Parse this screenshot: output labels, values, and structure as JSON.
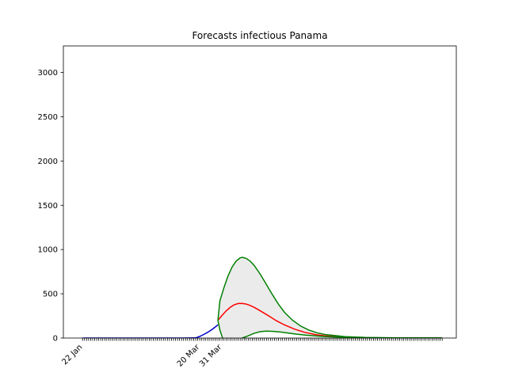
{
  "chart_data": {
    "type": "line",
    "title": "Forecasts infectious Panama",
    "xlabel": "",
    "ylabel": "",
    "x_axis": {
      "type": "date",
      "start": "22 Jan",
      "end": "17 Jul",
      "tick_labels": [
        "22 Jan",
        "20 Mar",
        "31 Mar"
      ],
      "tick_label_days": [
        0,
        58,
        69
      ],
      "minor_tick_step_days": 1
    },
    "ylim": [
      0,
      3300
    ],
    "yticks": [
      0,
      500,
      1000,
      1500,
      2000,
      2500,
      3000
    ],
    "grid": false,
    "band_fill": "#ebebeb",
    "series": [
      {
        "role": "observed",
        "color": "#0000cc",
        "points": [
          [
            0,
            0
          ],
          [
            40,
            0
          ],
          [
            50,
            0
          ],
          [
            56,
            2
          ],
          [
            58,
            18
          ],
          [
            60,
            40
          ],
          [
            62,
            65
          ],
          [
            64,
            95
          ],
          [
            66,
            130
          ],
          [
            67,
            150
          ]
        ]
      },
      {
        "role": "forecast",
        "color": "#ff0000",
        "points": [
          [
            67,
            200
          ],
          [
            69,
            255
          ],
          [
            71,
            305
          ],
          [
            73,
            345
          ],
          [
            75,
            375
          ],
          [
            77,
            390
          ],
          [
            79,
            392
          ],
          [
            81,
            384
          ],
          [
            83,
            368
          ],
          [
            85,
            346
          ],
          [
            87,
            320
          ],
          [
            90,
            280
          ],
          [
            93,
            238
          ],
          [
            96,
            195
          ],
          [
            100,
            148
          ],
          [
            105,
            100
          ],
          [
            110,
            64
          ],
          [
            115,
            40
          ],
          [
            120,
            25
          ],
          [
            130,
            10
          ],
          [
            140,
            4
          ],
          [
            155,
            2
          ],
          [
            178,
            1
          ]
        ]
      },
      {
        "role": "upper",
        "color": "#008000",
        "points": [
          [
            67,
            200
          ],
          [
            68,
            420
          ],
          [
            70,
            570
          ],
          [
            72,
            700
          ],
          [
            74,
            800
          ],
          [
            76,
            868
          ],
          [
            78,
            905
          ],
          [
            79,
            912
          ],
          [
            81,
            900
          ],
          [
            83,
            868
          ],
          [
            85,
            818
          ],
          [
            88,
            720
          ],
          [
            91,
            605
          ],
          [
            94,
            490
          ],
          [
            97,
            380
          ],
          [
            100,
            290
          ],
          [
            104,
            200
          ],
          [
            108,
            135
          ],
          [
            112,
            90
          ],
          [
            116,
            60
          ],
          [
            120,
            40
          ],
          [
            130,
            16
          ],
          [
            140,
            7
          ],
          [
            155,
            3
          ],
          [
            178,
            1
          ]
        ]
      },
      {
        "role": "lower",
        "color": "#008000",
        "points": [
          [
            67,
            200
          ],
          [
            68,
            90
          ],
          [
            69,
            20
          ],
          [
            70,
            -40
          ],
          [
            71,
            -110
          ]
        ],
        "tail_points": [
          [
            79,
            0
          ],
          [
            82,
            25
          ],
          [
            85,
            55
          ],
          [
            88,
            72
          ],
          [
            91,
            78
          ],
          [
            94,
            76
          ],
          [
            98,
            68
          ],
          [
            102,
            56
          ],
          [
            106,
            44
          ],
          [
            110,
            34
          ],
          [
            115,
            24
          ],
          [
            120,
            17
          ],
          [
            130,
            8
          ],
          [
            140,
            4
          ],
          [
            155,
            2
          ],
          [
            178,
            1
          ]
        ]
      }
    ]
  }
}
